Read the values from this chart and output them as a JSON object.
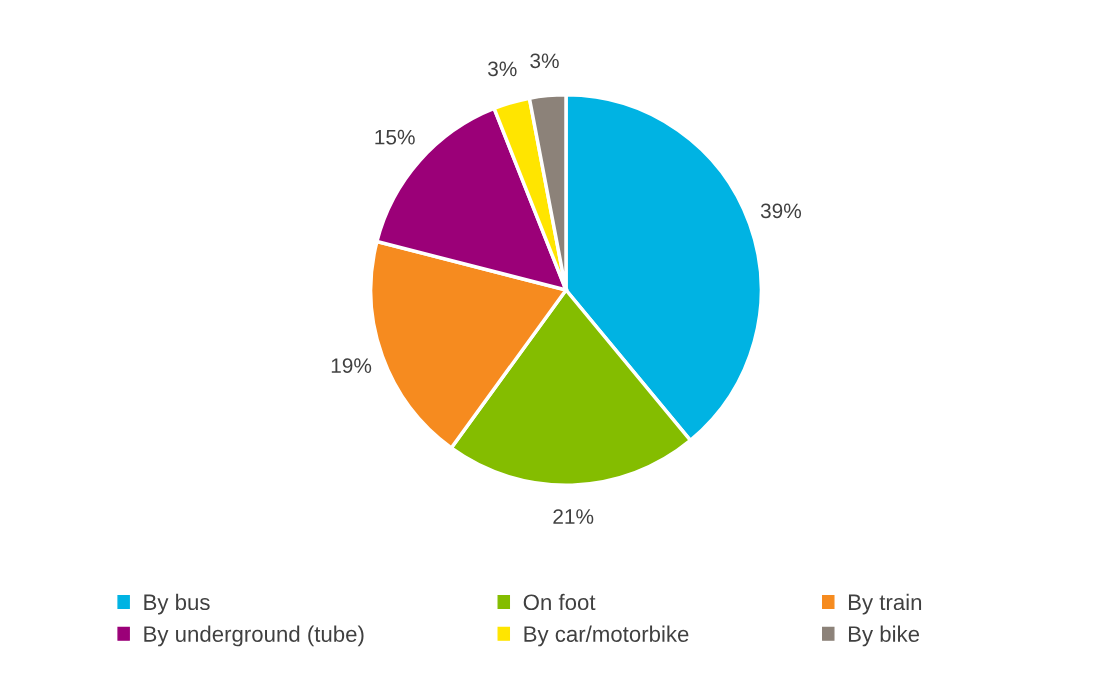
{
  "chart_data": {
    "type": "pie",
    "categories": [
      "By bus",
      "On foot",
      "By train",
      "By underground (tube)",
      "By car/motorbike",
      "By bike"
    ],
    "values": [
      39,
      21,
      19,
      15,
      3,
      3
    ],
    "colors": [
      "#00b3e3",
      "#84bd00",
      "#f68b1f",
      "#9b0078",
      "#ffe500",
      "#8c8279"
    ],
    "value_labels": [
      "39%",
      "21%",
      "19%",
      "15%",
      "3%",
      "3%"
    ],
    "legend": "bottom"
  }
}
